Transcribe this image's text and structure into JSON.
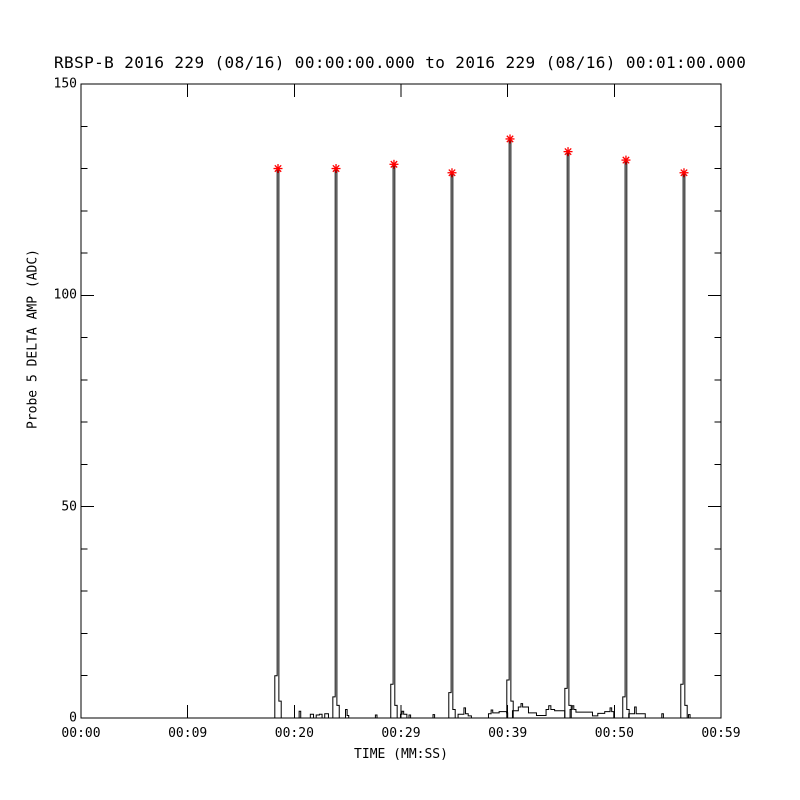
{
  "chart_data": {
    "type": "line",
    "title": "RBSP-B 2016 229 (08/16) 00:00:00.000 to 2016 229 (08/16) 00:01:00.000",
    "xlabel": "TIME (MM:SS)",
    "ylabel": "Probe 5 DELTA AMP (ADC)",
    "xlim_seconds": [
      0,
      60
    ],
    "ylim": [
      0,
      150
    ],
    "grid": false,
    "legend": "none",
    "x_ticks": [
      {
        "t": 0,
        "label": "00:00"
      },
      {
        "t": 10,
        "label": "00:09"
      },
      {
        "t": 20,
        "label": "00:20"
      },
      {
        "t": 30,
        "label": "00:29"
      },
      {
        "t": 40,
        "label": "00:39"
      },
      {
        "t": 50,
        "label": "00:50"
      },
      {
        "t": 60,
        "label": "00:59"
      }
    ],
    "y_ticks": [
      0,
      50,
      100,
      150
    ],
    "y_minor_step": 10,
    "line_color": "#000000",
    "marker": {
      "symbol": "asterisk",
      "color": "#ff0000"
    },
    "spikes": [
      {
        "t": 18.47,
        "peak": 130,
        "pre": 10,
        "post": 4
      },
      {
        "t": 23.91,
        "peak": 130,
        "pre": 5,
        "post": 3
      },
      {
        "t": 29.34,
        "peak": 131,
        "pre": 8,
        "post": 3
      },
      {
        "t": 34.78,
        "peak": 129,
        "pre": 6,
        "post": 2
      },
      {
        "t": 40.22,
        "peak": 137,
        "pre": 9,
        "post": 4
      },
      {
        "t": 45.66,
        "peak": 134,
        "pre": 7,
        "post": 3
      },
      {
        "t": 51.09,
        "peak": 132,
        "pre": 5,
        "post": 2
      },
      {
        "t": 56.53,
        "peak": 129,
        "pre": 8,
        "post": 3
      }
    ],
    "noise_steps": [
      [
        0,
        0
      ],
      [
        20.45,
        1.6
      ],
      [
        20.6,
        0
      ],
      [
        21.5,
        0.9
      ],
      [
        21.8,
        0
      ],
      [
        22.05,
        0.7
      ],
      [
        22.35,
        0.9
      ],
      [
        22.6,
        0
      ],
      [
        22.85,
        1.0
      ],
      [
        23.2,
        0
      ],
      [
        24.8,
        2.0
      ],
      [
        24.95,
        0.6
      ],
      [
        25.1,
        0
      ],
      [
        27.6,
        0.7
      ],
      [
        27.75,
        0
      ],
      [
        29.95,
        0.9
      ],
      [
        30.1,
        1.6
      ],
      [
        30.25,
        0.9
      ],
      [
        30.55,
        0
      ],
      [
        30.75,
        0.7
      ],
      [
        30.9,
        0
      ],
      [
        33.0,
        0.8
      ],
      [
        33.15,
        0
      ],
      [
        35.35,
        0.9
      ],
      [
        35.9,
        2.4
      ],
      [
        36.05,
        1.0
      ],
      [
        36.3,
        0.5
      ],
      [
        36.6,
        0
      ],
      [
        38.2,
        1.0
      ],
      [
        38.45,
        1.9
      ],
      [
        38.6,
        1.2
      ],
      [
        39.2,
        1.5
      ],
      [
        39.9,
        1.2
      ],
      [
        40.0,
        0
      ],
      [
        40.45,
        1.7
      ],
      [
        41.0,
        2.6
      ],
      [
        41.25,
        3.4
      ],
      [
        41.4,
        2.6
      ],
      [
        41.95,
        1.2
      ],
      [
        42.7,
        0.6
      ],
      [
        43.6,
        2.0
      ],
      [
        43.85,
        2.9
      ],
      [
        44.05,
        2.0
      ],
      [
        44.4,
        1.7
      ],
      [
        45.35,
        0
      ],
      [
        45.85,
        2.0
      ],
      [
        46.05,
        2.9
      ],
      [
        46.2,
        2.0
      ],
      [
        46.4,
        1.4
      ],
      [
        47.95,
        0.5
      ],
      [
        48.45,
        1.1
      ],
      [
        49.1,
        1.5
      ],
      [
        49.6,
        2.4
      ],
      [
        49.75,
        1.5
      ],
      [
        49.95,
        0
      ],
      [
        51.35,
        1.0
      ],
      [
        51.9,
        2.6
      ],
      [
        52.05,
        1.0
      ],
      [
        52.9,
        0
      ],
      [
        54.45,
        1.0
      ],
      [
        54.6,
        0
      ],
      [
        56.95,
        0.8
      ],
      [
        57.1,
        0
      ],
      [
        60,
        0
      ]
    ]
  }
}
